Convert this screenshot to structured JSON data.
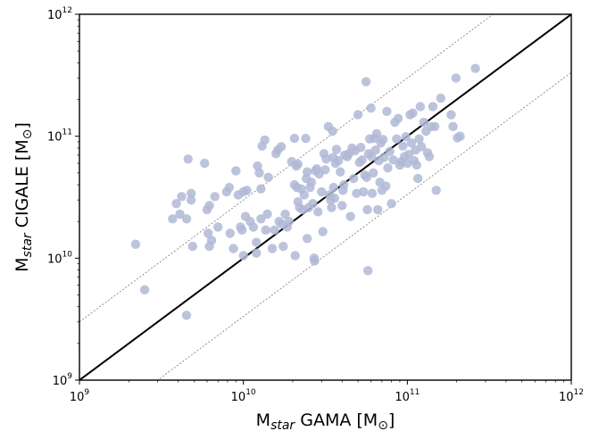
{
  "chart_data": {
    "type": "scatter",
    "title": "",
    "xlabel": {
      "main": "M",
      "sub": "star",
      "rest": " GAMA [M",
      "symbol": "⊙",
      "close": "]"
    },
    "ylabel": {
      "main": "M",
      "sub": "star",
      "rest": " CIGALE [M",
      "symbol": "⊙",
      "close": "]"
    },
    "xscale": "log",
    "yscale": "log",
    "xlim": [
      1000000000.0,
      1000000000000.0
    ],
    "ylim": [
      1000000000.0,
      1000000000000.0
    ],
    "grid": false,
    "xticks": [
      {
        "value": 1000000000.0,
        "base": "10",
        "exp": "9"
      },
      {
        "value": 10000000000.0,
        "base": "10",
        "exp": "10"
      },
      {
        "value": 100000000000.0,
        "base": "10",
        "exp": "11"
      },
      {
        "value": 1000000000000.0,
        "base": "10",
        "exp": "12"
      }
    ],
    "yticks": [
      {
        "value": 1000000000.0,
        "base": "10",
        "exp": "9"
      },
      {
        "value": 10000000000.0,
        "base": "10",
        "exp": "10"
      },
      {
        "value": 100000000000.0,
        "base": "10",
        "exp": "11"
      },
      {
        "value": 1000000000000.0,
        "base": "10",
        "exp": "12"
      }
    ],
    "reference_lines": [
      {
        "style": "solid",
        "factor": 1
      },
      {
        "style": "dotted",
        "factor": 3
      },
      {
        "style": "dotted",
        "factor": 0.333
      }
    ],
    "marker_color": "#b0b8d6",
    "points": [
      [
        2200000000.0,
        13000000000.0
      ],
      [
        2500000000.0,
        5500000000.0
      ],
      [
        3700000000.0,
        21000000000.0
      ],
      [
        3900000000.0,
        28000000000.0
      ],
      [
        4100000000.0,
        23000000000.0
      ],
      [
        4200000000.0,
        32000000000.0
      ],
      [
        4500000000.0,
        21000000000.0
      ],
      [
        4500000000.0,
        3400000000.0
      ],
      [
        4600000000.0,
        65000000000.0
      ],
      [
        4800000000.0,
        34000000000.0
      ],
      [
        4800000000.0,
        30000000000.0
      ],
      [
        4900000000.0,
        12500000000.0
      ],
      [
        5800000000.0,
        60000000000.0
      ],
      [
        6000000000.0,
        25000000000.0
      ],
      [
        6100000000.0,
        16000000000.0
      ],
      [
        6200000000.0,
        27000000000.0
      ],
      [
        6200000000.0,
        12500000000.0
      ],
      [
        6400000000.0,
        14000000000.0
      ],
      [
        6700000000.0,
        32000000000.0
      ],
      [
        7000000000.0,
        18000000000.0
      ],
      [
        7900000000.0,
        35000000000.0
      ],
      [
        8200000000.0,
        38000000000.0
      ],
      [
        8300000000.0,
        16000000000.0
      ],
      [
        8700000000.0,
        12000000000.0
      ],
      [
        9000000000.0,
        52000000000.0
      ],
      [
        9300000000.0,
        33000000000.0
      ],
      [
        9600000000.0,
        18000000000.0
      ],
      [
        9800000000.0,
        17000000000.0
      ],
      [
        10000000000.0,
        35000000000.0
      ],
      [
        10000000000.0,
        10500000000.0
      ],
      [
        10300000000.0,
        22000000000.0
      ],
      [
        10500000000.0,
        36000000000.0
      ],
      [
        11000000000.0,
        20000000000.0
      ],
      [
        11500000000.0,
        18000000000.0
      ],
      [
        12000000000.0,
        13500000000.0
      ],
      [
        12000000000.0,
        11000000000.0
      ],
      [
        12200000000.0,
        57000000000.0
      ],
      [
        12500000000.0,
        50000000000.0
      ],
      [
        12800000000.0,
        37000000000.0
      ],
      [
        12800000000.0,
        21000000000.0
      ],
      [
        13000000000.0,
        83000000000.0
      ],
      [
        13500000000.0,
        93000000000.0
      ],
      [
        13700000000.0,
        17000000000.0
      ],
      [
        14000000000.0,
        23000000000.0
      ],
      [
        14200000000.0,
        46000000000.0
      ],
      [
        15000000000.0,
        12000000000.0
      ],
      [
        15500000000.0,
        17000000000.0
      ],
      [
        15800000000.0,
        72000000000.0
      ],
      [
        16200000000.0,
        77000000000.0
      ],
      [
        16500000000.0,
        20000000000.0
      ],
      [
        17000000000.0,
        82000000000.0
      ],
      [
        17200000000.0,
        19000000000.0
      ],
      [
        17500000000.0,
        12500000000.0
      ],
      [
        18000000000.0,
        23000000000.0
      ],
      [
        18500000000.0,
        18000000000.0
      ],
      [
        19000000000.0,
        20000000000.0
      ],
      [
        19700000000.0,
        62000000000.0
      ],
      [
        20500000000.0,
        96000000000.0
      ],
      [
        20500000000.0,
        40000000000.0
      ],
      [
        20700000000.0,
        10500000000.0
      ],
      [
        21000000000.0,
        57000000000.0
      ],
      [
        21200000000.0,
        38000000000.0
      ],
      [
        21500000000.0,
        59000000000.0
      ],
      [
        21500000000.0,
        29000000000.0
      ],
      [
        22000000000.0,
        26000000000.0
      ],
      [
        22500000000.0,
        37000000000.0
      ],
      [
        23000000000.0,
        25000000000.0
      ],
      [
        23500000000.0,
        33000000000.0
      ],
      [
        24000000000.0,
        96000000000.0
      ],
      [
        24200000000.0,
        45000000000.0
      ],
      [
        24500000000.0,
        51000000000.0
      ],
      [
        24500000000.0,
        14500000000.0
      ],
      [
        25000000000.0,
        26000000000.0
      ],
      [
        25500000000.0,
        38000000000.0
      ],
      [
        26000000000.0,
        42000000000.0
      ],
      [
        26500000000.0,
        28000000000.0
      ],
      [
        27000000000.0,
        10000000000.0
      ],
      [
        27200000000.0,
        9500000000.0
      ],
      [
        27500000000.0,
        52000000000.0
      ],
      [
        28000000000.0,
        54000000000.0
      ],
      [
        28500000000.0,
        24000000000.0
      ],
      [
        29000000000.0,
        49000000000.0
      ],
      [
        30000000000.0,
        35000000000.0
      ],
      [
        30500000000.0,
        16500000000.0
      ],
      [
        31000000000.0,
        72000000000.0
      ],
      [
        31500000000.0,
        53000000000.0
      ],
      [
        32000000000.0,
        65000000000.0
      ],
      [
        33000000000.0,
        120000000000.0
      ],
      [
        33500000000.0,
        33000000000.0
      ],
      [
        34000000000.0,
        30000000000.0
      ],
      [
        34500000000.0,
        26000000000.0
      ],
      [
        35000000000.0,
        110000000000.0
      ],
      [
        35200000000.0,
        67000000000.0
      ],
      [
        35500000000.0,
        38000000000.0
      ],
      [
        36000000000.0,
        31000000000.0
      ],
      [
        36500000000.0,
        60000000000.0
      ],
      [
        37000000000.0,
        78000000000.0
      ],
      [
        38000000000.0,
        63000000000.0
      ],
      [
        39000000000.0,
        51000000000.0
      ],
      [
        40000000000.0,
        27000000000.0
      ],
      [
        40500000000.0,
        36000000000.0
      ],
      [
        41000000000.0,
        40000000000.0
      ],
      [
        41500000000.0,
        70000000000.0
      ],
      [
        43000000000.0,
        68000000000.0
      ],
      [
        44000000000.0,
        72000000000.0
      ],
      [
        45000000000.0,
        22000000000.0
      ],
      [
        46000000000.0,
        80000000000.0
      ],
      [
        47000000000.0,
        45000000000.0
      ],
      [
        48000000000.0,
        76000000000.0
      ],
      [
        49000000000.0,
        34000000000.0
      ],
      [
        50000000000.0,
        150000000000.0
      ],
      [
        51000000000.0,
        61000000000.0
      ],
      [
        52000000000.0,
        81000000000.0
      ],
      [
        53000000000.0,
        64000000000.0
      ],
      [
        54000000000.0,
        35000000000.0
      ],
      [
        55000000000.0,
        48000000000.0
      ],
      [
        56000000000.0,
        280000000000.0
      ],
      [
        56500000000.0,
        46000000000.0
      ],
      [
        57000000000.0,
        25000000000.0
      ],
      [
        57500000000.0,
        7900000000.0
      ],
      [
        58000000000.0,
        72000000000.0
      ],
      [
        59000000000.0,
        95000000000.0
      ],
      [
        60000000000.0,
        170000000000.0
      ],
      [
        60500000000.0,
        68000000000.0
      ],
      [
        61000000000.0,
        34000000000.0
      ],
      [
        62000000000.0,
        50000000000.0
      ],
      [
        63000000000.0,
        96000000000.0
      ],
      [
        64000000000.0,
        77000000000.0
      ],
      [
        65000000000.0,
        105000000000.0
      ],
      [
        66000000000.0,
        25000000000.0
      ],
      [
        67000000000.0,
        63000000000.0
      ],
      [
        68000000000.0,
        42000000000.0
      ],
      [
        69000000000.0,
        88000000000.0
      ],
      [
        70000000000.0,
        36000000000.0
      ],
      [
        71000000000.0,
        94000000000.0
      ],
      [
        72000000000.0,
        67000000000.0
      ],
      [
        74000000000.0,
        39000000000.0
      ],
      [
        75000000000.0,
        160000000000.0
      ],
      [
        76000000000.0,
        55000000000.0
      ],
      [
        78000000000.0,
        75000000000.0
      ],
      [
        80000000000.0,
        28000000000.0
      ],
      [
        82000000000.0,
        64000000000.0
      ],
      [
        84000000000.0,
        130000000000.0
      ],
      [
        86000000000.0,
        95000000000.0
      ],
      [
        88000000000.0,
        140000000000.0
      ],
      [
        90000000000.0,
        58000000000.0
      ],
      [
        92000000000.0,
        62000000000.0
      ],
      [
        94000000000.0,
        83000000000.0
      ],
      [
        96000000000.0,
        68000000000.0
      ],
      [
        98000000000.0,
        99000000000.0
      ],
      [
        100000000000.0,
        60000000000.0
      ],
      [
        102000000000.0,
        71000000000.0
      ],
      [
        104000000000.0,
        150000000000.0
      ],
      [
        106000000000.0,
        88000000000.0
      ],
      [
        108000000000.0,
        155000000000.0
      ],
      [
        110000000000.0,
        63000000000.0
      ],
      [
        112000000000.0,
        77000000000.0
      ],
      [
        114000000000.0,
        58000000000.0
      ],
      [
        116000000000.0,
        45000000000.0
      ],
      [
        118000000000.0,
        95000000000.0
      ],
      [
        120000000000.0,
        175000000000.0
      ],
      [
        122000000000.0,
        82000000000.0
      ],
      [
        126000000000.0,
        130000000000.0
      ],
      [
        130000000000.0,
        110000000000.0
      ],
      [
        133000000000.0,
        73000000000.0
      ],
      [
        136000000000.0,
        68000000000.0
      ],
      [
        140000000000.0,
        120000000000.0
      ],
      [
        143000000000.0,
        175000000000.0
      ],
      [
        147000000000.0,
        120000000000.0
      ],
      [
        150000000000.0,
        36000000000.0
      ],
      [
        160000000000.0,
        205000000000.0
      ],
      [
        185000000000.0,
        150000000000.0
      ],
      [
        190000000000.0,
        120000000000.0
      ],
      [
        198000000000.0,
        300000000000.0
      ],
      [
        202000000000.0,
        97000000000.0
      ],
      [
        210000000000.0,
        100000000000.0
      ],
      [
        260000000000.0,
        360000000000.0
      ]
    ]
  }
}
